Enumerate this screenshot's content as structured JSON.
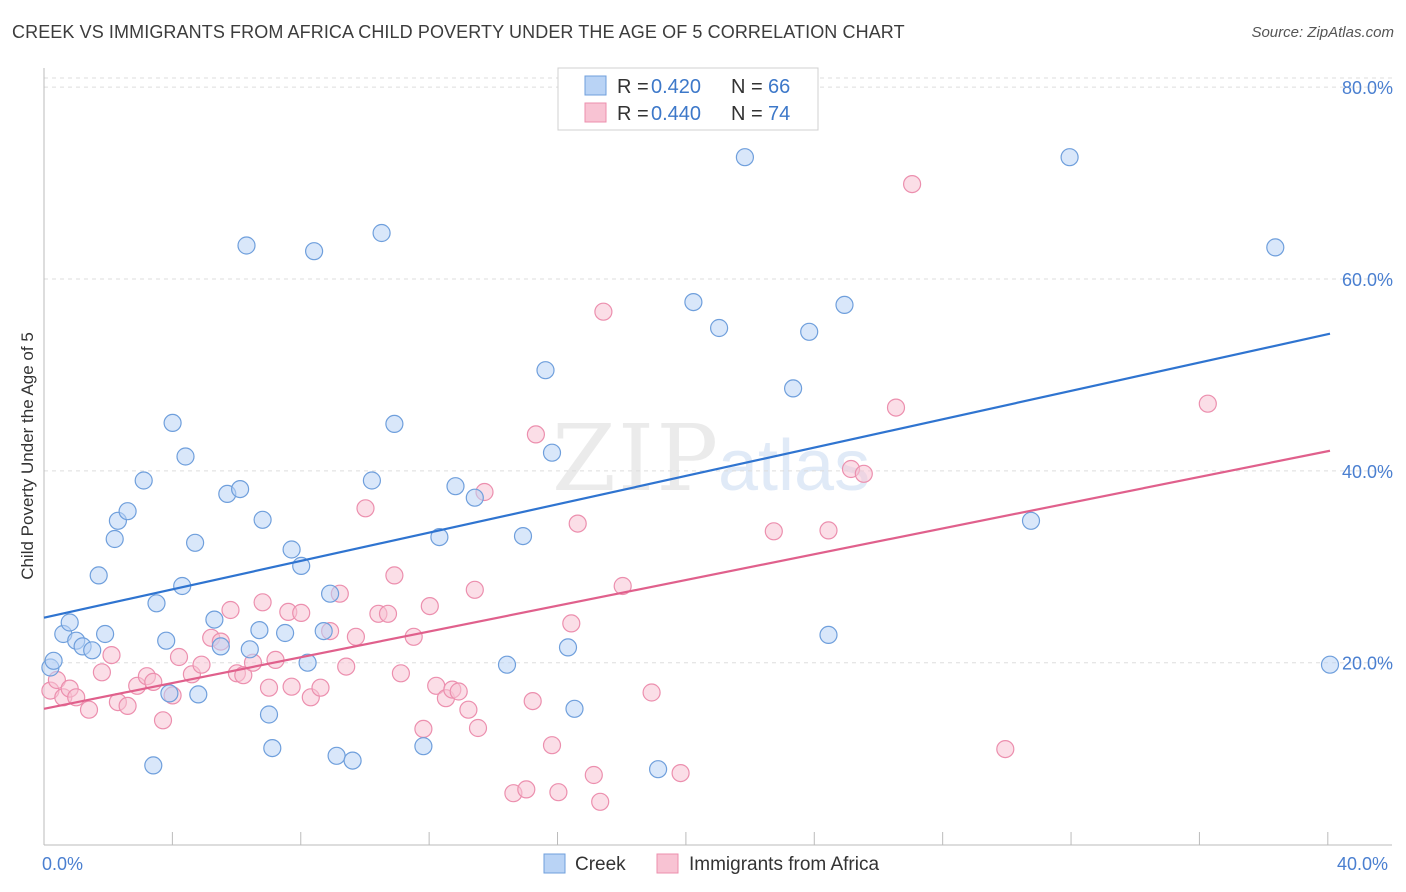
{
  "title": "CREEK VS IMMIGRANTS FROM AFRICA CHILD POVERTY UNDER THE AGE OF 5 CORRELATION CHART",
  "source": "Source: ZipAtlas.com",
  "watermark": {
    "zip": "ZIP",
    "atlas": "atlas"
  },
  "colors": {
    "creek_fill": "#b9d3f5",
    "creek_stroke": "#6f9fdc",
    "creek_line": "#2f74d0",
    "africa_fill": "#f8c3d3",
    "africa_stroke": "#ec8fae",
    "africa_line": "#e0608c",
    "tick_text": "#4a7fd0",
    "grid": "#dddddd"
  },
  "legend": {
    "rows": [
      {
        "r_label": "R = ",
        "r_value": "0.420",
        "n_label": "N = ",
        "n_value": "66"
      },
      {
        "r_label": "R = ",
        "r_value": "0.440",
        "n_label": "N = ",
        "n_value": "74"
      }
    ]
  },
  "chart_data": {
    "type": "scatter",
    "title": "CREEK VS IMMIGRANTS FROM AFRICA CHILD POVERTY UNDER THE AGE OF 5 CORRELATION CHART",
    "xlabel": "",
    "ylabel": "Child Poverty Under the Age of 5",
    "xlim": [
      0,
      40
    ],
    "ylim": [
      1,
      82
    ],
    "x_tick_labels": [
      "0.0%",
      "40.0%"
    ],
    "y_ticks": [
      20,
      40,
      60,
      80
    ],
    "y_tick_labels": [
      "20.0%",
      "40.0%",
      "60.0%",
      "80.0%"
    ],
    "grid": true,
    "legend_position": "top-center",
    "series": [
      {
        "name": "Creek",
        "trend": {
          "x": [
            0,
            40
          ],
          "y": [
            24.7,
            54.3
          ]
        },
        "points": [
          [
            0.2,
            19.5
          ],
          [
            0.3,
            20.2
          ],
          [
            0.6,
            23.0
          ],
          [
            0.8,
            24.2
          ],
          [
            1.0,
            22.3
          ],
          [
            1.2,
            21.7
          ],
          [
            1.5,
            21.3
          ],
          [
            1.7,
            29.1
          ],
          [
            1.9,
            23.0
          ],
          [
            2.2,
            32.9
          ],
          [
            2.3,
            34.8
          ],
          [
            2.6,
            35.8
          ],
          [
            3.1,
            39.0
          ],
          [
            3.4,
            9.3
          ],
          [
            3.5,
            26.2
          ],
          [
            3.8,
            22.3
          ],
          [
            3.9,
            16.8
          ],
          [
            4.0,
            45.0
          ],
          [
            4.3,
            28.0
          ],
          [
            4.4,
            41.5
          ],
          [
            4.7,
            32.5
          ],
          [
            4.8,
            16.7
          ],
          [
            5.3,
            24.5
          ],
          [
            5.5,
            21.7
          ],
          [
            5.7,
            37.6
          ],
          [
            6.1,
            38.1
          ],
          [
            6.3,
            63.5
          ],
          [
            6.4,
            21.4
          ],
          [
            6.7,
            23.4
          ],
          [
            6.8,
            34.9
          ],
          [
            7.0,
            14.6
          ],
          [
            7.1,
            11.1
          ],
          [
            7.5,
            23.1
          ],
          [
            7.7,
            31.8
          ],
          [
            8.0,
            30.1
          ],
          [
            8.2,
            20.0
          ],
          [
            8.4,
            62.9
          ],
          [
            8.7,
            23.3
          ],
          [
            8.9,
            27.2
          ],
          [
            9.1,
            10.3
          ],
          [
            9.6,
            9.8
          ],
          [
            10.2,
            39.0
          ],
          [
            10.5,
            64.8
          ],
          [
            10.9,
            44.9
          ],
          [
            11.8,
            11.3
          ],
          [
            12.3,
            33.1
          ],
          [
            12.8,
            38.4
          ],
          [
            13.4,
            37.2
          ],
          [
            14.4,
            19.8
          ],
          [
            14.9,
            33.2
          ],
          [
            15.6,
            50.5
          ],
          [
            15.8,
            41.9
          ],
          [
            16.3,
            21.6
          ],
          [
            16.5,
            15.2
          ],
          [
            19.1,
            8.9
          ],
          [
            20.2,
            57.6
          ],
          [
            21.0,
            54.9
          ],
          [
            21.8,
            72.7
          ],
          [
            23.3,
            48.6
          ],
          [
            23.8,
            54.5
          ],
          [
            24.4,
            22.9
          ],
          [
            24.9,
            57.3
          ],
          [
            30.7,
            34.8
          ],
          [
            31.9,
            72.7
          ],
          [
            38.3,
            63.3
          ],
          [
            40.0,
            19.8
          ]
        ]
      },
      {
        "name": "Immigrants from Africa",
        "trend": {
          "x": [
            0,
            40
          ],
          "y": [
            15.2,
            42.1
          ]
        },
        "points": [
          [
            0.2,
            17.1
          ],
          [
            0.4,
            18.2
          ],
          [
            0.6,
            16.4
          ],
          [
            0.8,
            17.3
          ],
          [
            1.0,
            16.4
          ],
          [
            1.4,
            15.1
          ],
          [
            1.8,
            19.0
          ],
          [
            2.1,
            20.8
          ],
          [
            2.3,
            15.9
          ],
          [
            2.6,
            15.5
          ],
          [
            2.9,
            17.6
          ],
          [
            3.2,
            18.6
          ],
          [
            3.4,
            18.0
          ],
          [
            3.7,
            14.0
          ],
          [
            4.0,
            16.6
          ],
          [
            4.2,
            20.6
          ],
          [
            4.6,
            18.8
          ],
          [
            4.9,
            19.8
          ],
          [
            5.2,
            22.6
          ],
          [
            5.5,
            22.2
          ],
          [
            5.8,
            25.5
          ],
          [
            6.0,
            18.9
          ],
          [
            6.2,
            18.7
          ],
          [
            6.5,
            20.0
          ],
          [
            6.8,
            26.3
          ],
          [
            7.0,
            17.4
          ],
          [
            7.2,
            20.3
          ],
          [
            7.6,
            25.3
          ],
          [
            7.7,
            17.5
          ],
          [
            8.0,
            25.2
          ],
          [
            8.3,
            16.4
          ],
          [
            8.6,
            17.4
          ],
          [
            8.9,
            23.3
          ],
          [
            9.2,
            27.2
          ],
          [
            9.4,
            19.6
          ],
          [
            9.7,
            22.7
          ],
          [
            10.0,
            36.1
          ],
          [
            10.4,
            25.1
          ],
          [
            10.7,
            25.1
          ],
          [
            10.9,
            29.1
          ],
          [
            11.1,
            18.9
          ],
          [
            11.5,
            22.7
          ],
          [
            11.8,
            13.1
          ],
          [
            12.0,
            25.9
          ],
          [
            12.2,
            17.6
          ],
          [
            12.5,
            16.3
          ],
          [
            12.7,
            17.2
          ],
          [
            12.9,
            17.0
          ],
          [
            13.2,
            15.1
          ],
          [
            13.4,
            27.6
          ],
          [
            13.5,
            13.2
          ],
          [
            13.7,
            37.8
          ],
          [
            14.6,
            6.4
          ],
          [
            15.0,
            6.8
          ],
          [
            15.2,
            16.0
          ],
          [
            15.3,
            43.8
          ],
          [
            15.8,
            11.4
          ],
          [
            16.0,
            6.5
          ],
          [
            16.4,
            24.1
          ],
          [
            16.6,
            34.5
          ],
          [
            17.1,
            8.3
          ],
          [
            17.3,
            5.5
          ],
          [
            17.4,
            56.6
          ],
          [
            18.0,
            28.0
          ],
          [
            18.9,
            16.9
          ],
          [
            19.8,
            8.5
          ],
          [
            22.7,
            33.7
          ],
          [
            24.4,
            33.8
          ],
          [
            25.1,
            40.2
          ],
          [
            25.5,
            39.7
          ],
          [
            26.5,
            46.6
          ],
          [
            27.0,
            69.9
          ],
          [
            29.9,
            11.0
          ],
          [
            36.2,
            47.0
          ]
        ]
      }
    ]
  },
  "axis": {
    "ylabel": "Child Poverty Under the Age of 5",
    "x_left_label": "0.0%",
    "x_right_label": "40.0%",
    "y_labels": [
      "20.0%",
      "40.0%",
      "60.0%",
      "80.0%"
    ]
  },
  "bottom_legend": {
    "items": [
      "Creek",
      "Immigrants from Africa"
    ]
  }
}
